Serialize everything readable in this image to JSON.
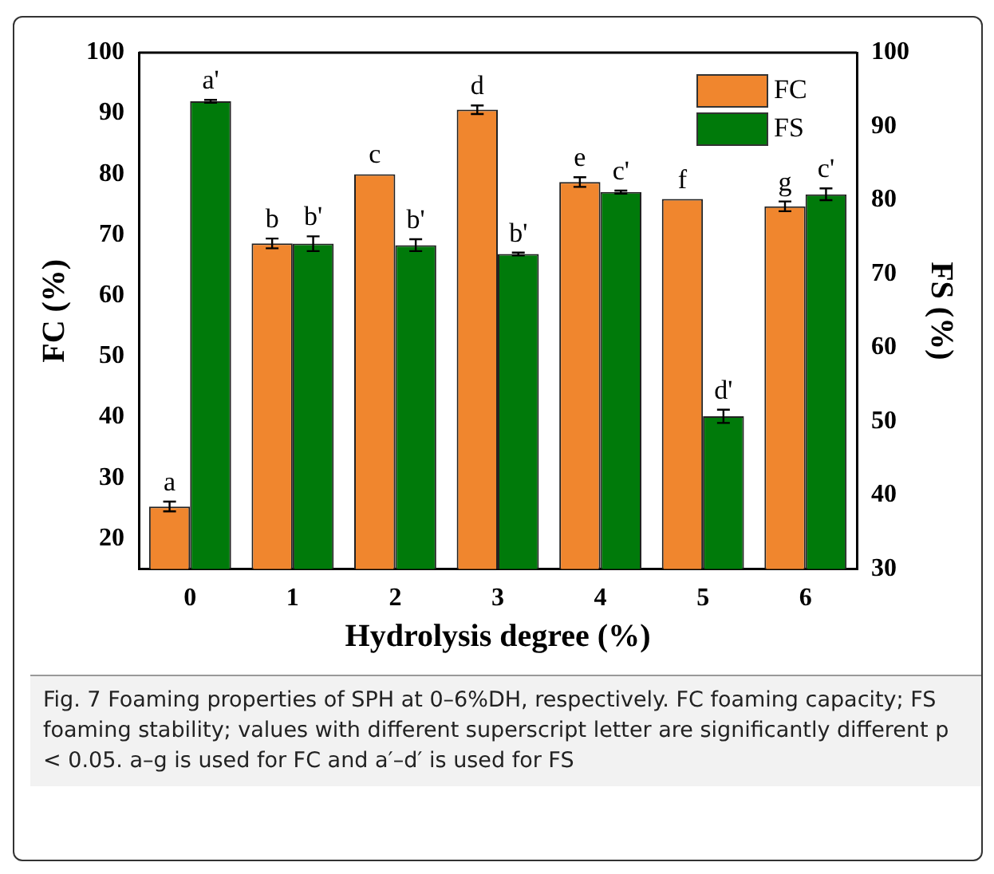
{
  "chart_data": {
    "type": "bar",
    "xlabel": "Hydrolysis degree (%)",
    "ylabel": "FC (%)",
    "y2label": "FS (%)",
    "categories": [
      "0",
      "1",
      "2",
      "3",
      "4",
      "5",
      "6"
    ],
    "series": [
      {
        "name": "FC",
        "color": "#f0862e",
        "values": [
          25.3,
          68.6,
          80,
          90.6,
          78.7,
          75.9,
          74.7
        ],
        "errors": [
          0.8,
          0.8,
          null,
          0.7,
          0.8,
          null,
          0.8
        ],
        "value_labels": [
          "a",
          "b",
          "c",
          "d",
          "e",
          "f",
          "g"
        ]
      },
      {
        "name": "FS",
        "color": "#007a0a",
        "axis": "y2",
        "values": [
          93.4,
          74.1,
          73.9,
          72.7,
          81.1,
          50.7,
          80.8
        ],
        "errors": [
          0.2,
          1.0,
          0.8,
          0.2,
          0.2,
          0.9,
          0.8
        ],
        "value_labels": [
          "a'",
          "b'",
          "b'",
          "b'",
          "c'",
          "d'",
          "c'"
        ]
      }
    ],
    "ylim": [
      15,
      100
    ],
    "yticks": [
      20,
      30,
      40,
      50,
      60,
      70,
      80,
      90,
      100
    ],
    "y2lim": [
      30,
      100
    ],
    "y2ticks": [
      30,
      40,
      50,
      60,
      70,
      80,
      90,
      100
    ],
    "grid": false,
    "legend": "top right",
    "annotations": [
      "Fig. 7  Foaming properties of SPH at 0–6%DH, respectively. FC foaming capacity; FS foaming stability; values with different superscript letter are significantly different p < 0.05. a–g is used for FC and a′–d′ is used for FS"
    ]
  }
}
